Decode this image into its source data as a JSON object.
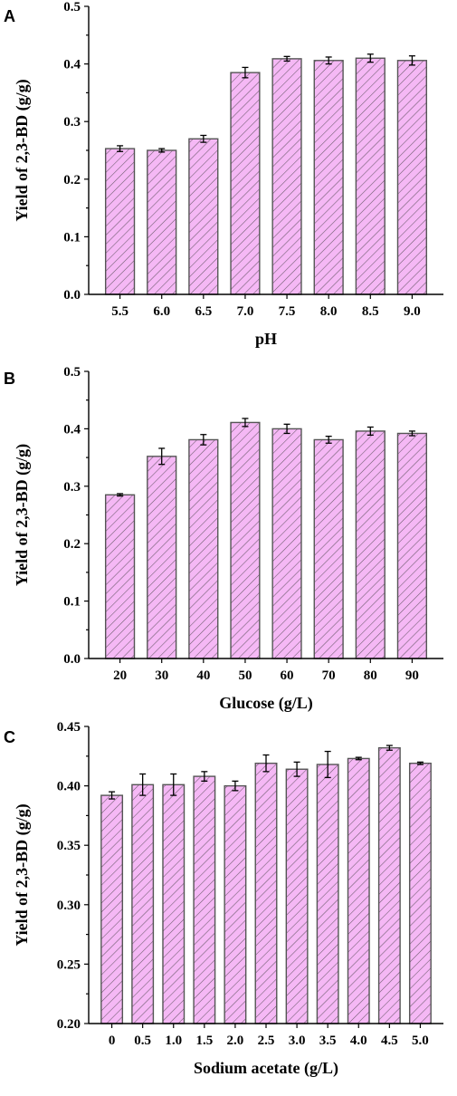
{
  "colors": {
    "bar_fill": "#f5b8f5",
    "hatch": "#6a5a6a",
    "bar_stroke": "#555555"
  },
  "chart_data": [
    {
      "panel": "A",
      "type": "bar",
      "title": "",
      "xlabel": "pH",
      "ylabel": "Yield of 2,3-BD (g/g)",
      "categories": [
        "5.5",
        "6.0",
        "6.5",
        "7.0",
        "7.5",
        "8.0",
        "8.5",
        "9.0"
      ],
      "values": [
        0.253,
        0.25,
        0.27,
        0.385,
        0.409,
        0.406,
        0.41,
        0.406
      ],
      "errors": [
        0.005,
        0.003,
        0.006,
        0.009,
        0.004,
        0.006,
        0.007,
        0.008
      ],
      "ylim": [
        0.0,
        0.5
      ],
      "yticks": [
        "0.0",
        "0.1",
        "0.2",
        "0.3",
        "0.4",
        "0.5"
      ],
      "grid": false
    },
    {
      "panel": "B",
      "type": "bar",
      "title": "",
      "xlabel": "Glucose (g/L)",
      "ylabel": "Yield of 2,3-BD (g/g)",
      "categories": [
        "20",
        "30",
        "40",
        "50",
        "60",
        "70",
        "80",
        "90"
      ],
      "values": [
        0.285,
        0.352,
        0.381,
        0.411,
        0.4,
        0.381,
        0.396,
        0.392
      ],
      "errors": [
        0.002,
        0.014,
        0.009,
        0.007,
        0.008,
        0.006,
        0.007,
        0.004
      ],
      "ylim": [
        0.0,
        0.5
      ],
      "yticks": [
        "0.0",
        "0.1",
        "0.2",
        "0.3",
        "0.4",
        "0.5"
      ],
      "grid": false
    },
    {
      "panel": "C",
      "type": "bar",
      "title": "",
      "xlabel": "Sodium acetate (g/L)",
      "ylabel": "Yield of 2,3-BD (g/g)",
      "categories": [
        "0",
        "0.5",
        "1.0",
        "1.5",
        "2.0",
        "2.5",
        "3.0",
        "3.5",
        "4.0",
        "4.5",
        "5.0"
      ],
      "values": [
        0.392,
        0.401,
        0.401,
        0.408,
        0.4,
        0.419,
        0.414,
        0.418,
        0.423,
        0.432,
        0.419
      ],
      "errors": [
        0.003,
        0.009,
        0.009,
        0.004,
        0.004,
        0.007,
        0.006,
        0.011,
        0.001,
        0.002,
        0.001
      ],
      "ylim": [
        0.2,
        0.45
      ],
      "yticks": [
        "0.20",
        "0.25",
        "0.30",
        "0.35",
        "0.40",
        "0.45"
      ],
      "grid": false
    }
  ]
}
